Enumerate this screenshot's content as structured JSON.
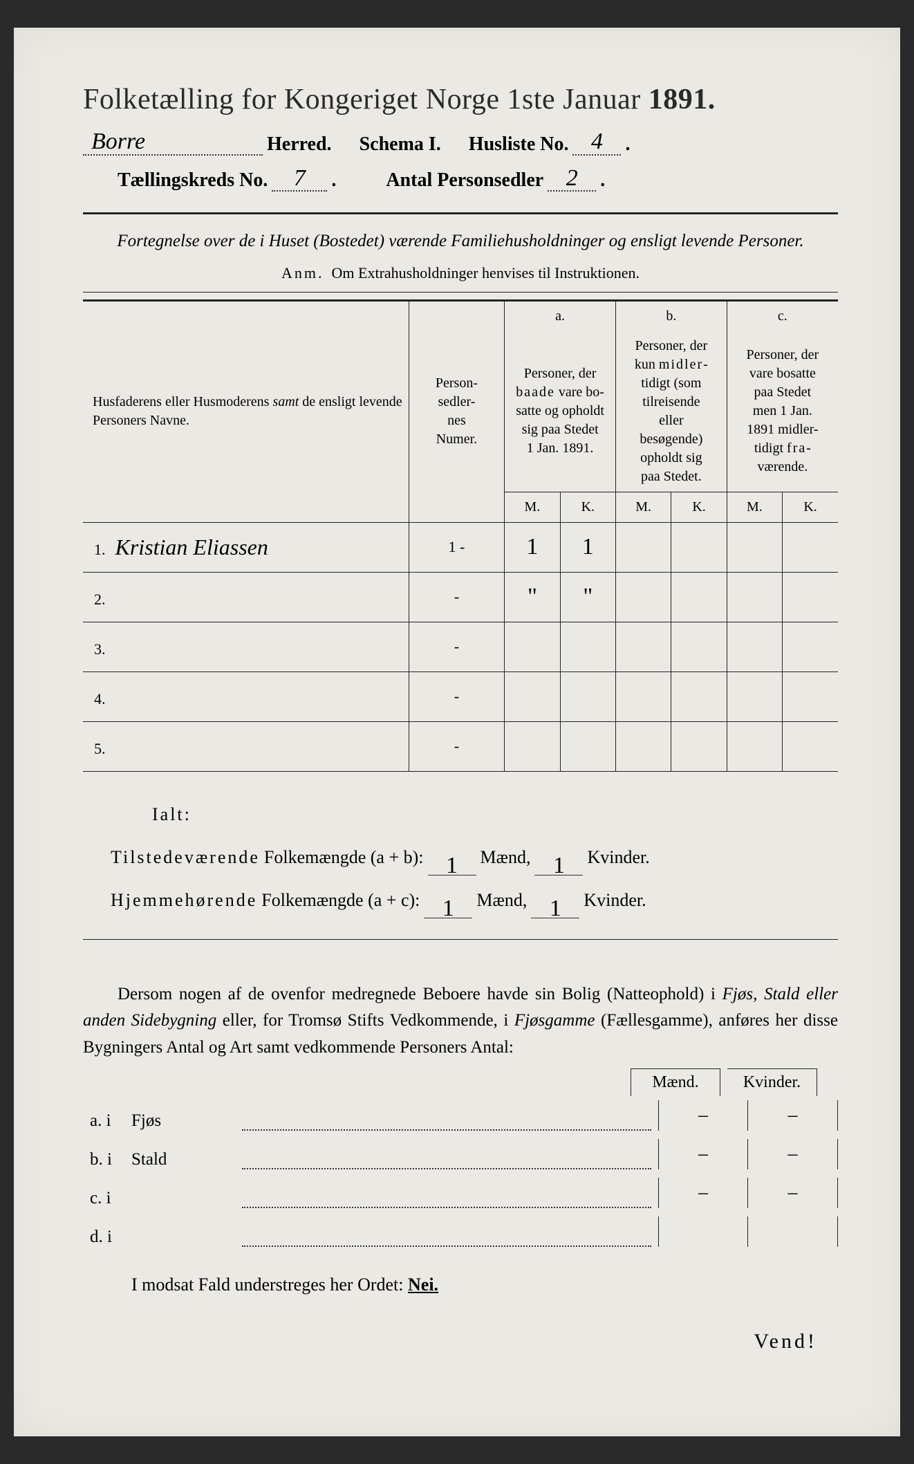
{
  "title": "Folketælling for Kongeriget Norge 1ste Januar",
  "year": "1891.",
  "header": {
    "herred_value": "Borre",
    "herred_label": "Herred.",
    "schema_label": "Schema I.",
    "husliste_label": "Husliste No.",
    "husliste_value": "4",
    "kreds_label": "Tællingskreds No.",
    "kreds_value": "7",
    "antal_label": "Antal Personsedler",
    "antal_value": "2"
  },
  "subtitle": "Fortegnelse over de i Huset (Bostedet) værende Familiehusholdninger og ensligt levende Personer.",
  "anm_lead": "Anm.",
  "anm_text": "Om Extrahusholdninger henvises til Instruktionen.",
  "table": {
    "col_names": "Husfaderens eller Husmoderens samt de ensligt levende Personers Navne.",
    "samt": "samt",
    "col_num": "Person-sedler-nes Numer.",
    "col_a_head": "a.",
    "col_a": "Personer, der baade vare bosatte og opholdt sig paa Stedet 1 Jan. 1891.",
    "baade": "baade",
    "col_b_head": "b.",
    "col_b": "Personer, der kun midlertidigt (som tilreisende eller besøgende) opholdt sig paa Stedet.",
    "midler": "midler",
    "col_c_head": "c.",
    "col_c": "Personer, der vare bosatte paa Stedet men 1 Jan. 1891 midlertidigt fraværende.",
    "fra": "fra",
    "M": "M.",
    "K": "K.",
    "rows": [
      {
        "idx": "1.",
        "name": "Kristian Eliassen",
        "num": "1 -",
        "aM": "1",
        "aK": "1",
        "bM": "",
        "bK": "",
        "cM": "",
        "cK": ""
      },
      {
        "idx": "2.",
        "name": "",
        "num": "-",
        "aM": "\"",
        "aK": "\"",
        "bM": "",
        "bK": "",
        "cM": "",
        "cK": ""
      },
      {
        "idx": "3.",
        "name": "",
        "num": "-",
        "aM": "",
        "aK": "",
        "bM": "",
        "bK": "",
        "cM": "",
        "cK": ""
      },
      {
        "idx": "4.",
        "name": "",
        "num": "-",
        "aM": "",
        "aK": "",
        "bM": "",
        "bK": "",
        "cM": "",
        "cK": ""
      },
      {
        "idx": "5.",
        "name": "",
        "num": "-",
        "aM": "",
        "aK": "",
        "bM": "",
        "bK": "",
        "cM": "",
        "cK": ""
      }
    ]
  },
  "totals": {
    "ialt": "Ialt:",
    "line1_a": "Tilstedeværende",
    "line1_b": "Folkemængde (a + b):",
    "line2_a": "Hjemmehørende",
    "line2_b": "Folkemængde (a + c):",
    "maend": "Mænd,",
    "kvinder": "Kvinder.",
    "v1m": "1",
    "v1k": "1",
    "v2m": "1",
    "v2k": "1"
  },
  "para": {
    "text1": "Dersom nogen af de ovenfor medregnede Beboere havde sin Bolig (Natteophold) i ",
    "it1": "Fjøs, Stald eller anden Sidebygning",
    "text2": " eller, for Tromsø Stifts Vedkommende, i ",
    "it2": "Fjøsgamme",
    "text3": " (Fællesgamme), anføres her disse Bygningers ",
    "b1": "Antal",
    "text4": " og ",
    "b2": "Art",
    "text5": " samt vedkommende Personers Antal:"
  },
  "mk": {
    "M": "Mænd.",
    "K": "Kvinder."
  },
  "bld": [
    {
      "lead": "a.  i",
      "name": "Fjøs",
      "m": "–",
      "k": "–"
    },
    {
      "lead": "b.  i",
      "name": "Stald",
      "m": "–",
      "k": "–"
    },
    {
      "lead": "c.  i",
      "name": "",
      "m": "–",
      "k": "–"
    },
    {
      "lead": "d.  i",
      "name": "",
      "m": "",
      "k": ""
    }
  ],
  "nei_line": "I modsat Fald understreges her Ordet: ",
  "nei": "Nei.",
  "vend": "Vend!"
}
